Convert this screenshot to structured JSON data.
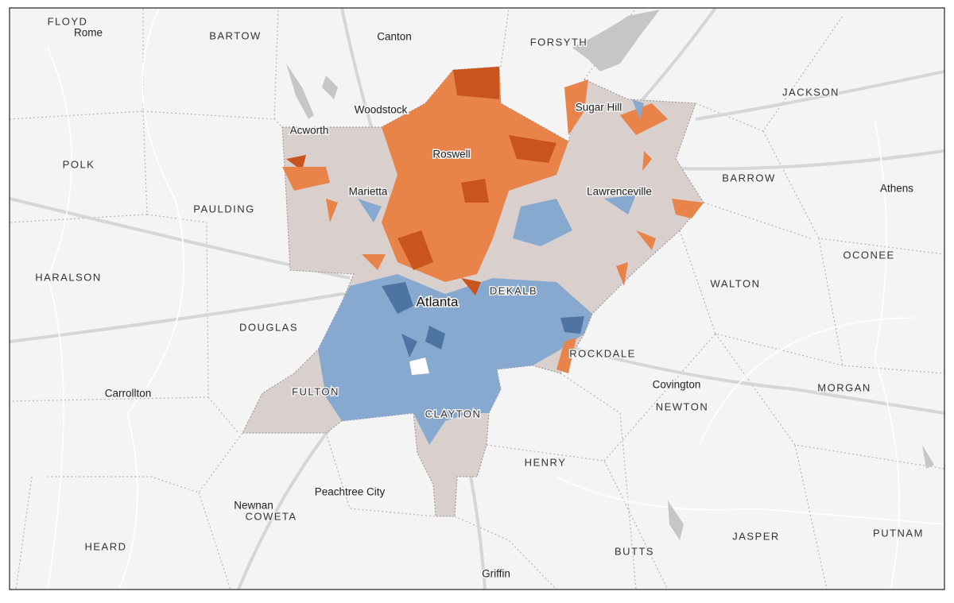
{
  "map": {
    "counties": [
      "FLOYD",
      "BARTOW",
      "FORSYTH",
      "JACKSON",
      "POLK",
      "BARROW",
      "PAULDING",
      "OCONEE",
      "HARALSON",
      "DEKALB",
      "WALTON",
      "DOUGLAS",
      "ROCKDALE",
      "FULTON",
      "MORGAN",
      "NEWTON",
      "CLAYTON",
      "HENRY",
      "COWETA",
      "HEARD",
      "JASPER",
      "PUTNAM",
      "BUTTS"
    ],
    "cities": [
      "Rome",
      "Canton",
      "Woodstock",
      "Sugar Hill",
      "Acworth",
      "Roswell",
      "Marietta",
      "Lawrenceville",
      "Athens",
      "Atlanta",
      "Carrollton",
      "Covington",
      "Peachtree City",
      "Newnan",
      "Griffin"
    ]
  }
}
